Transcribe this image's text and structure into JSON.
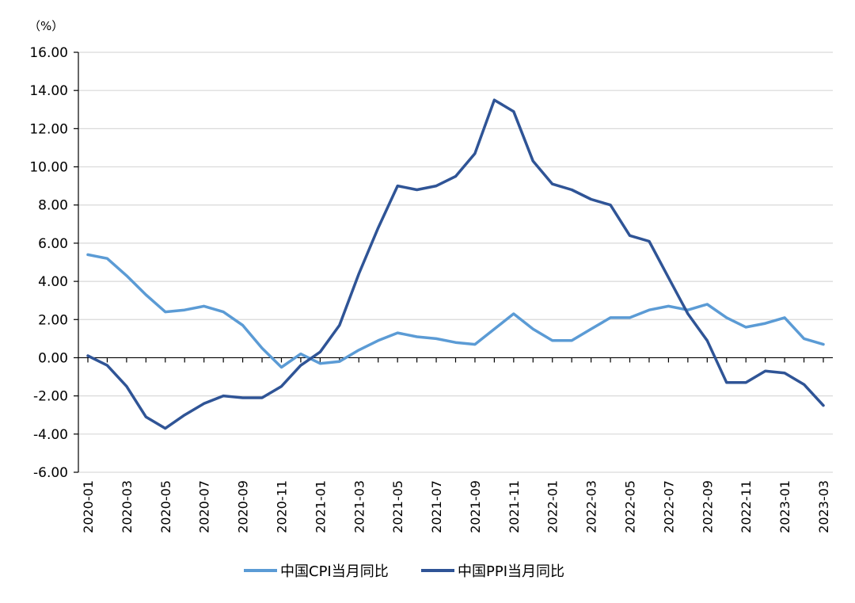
{
  "chart_data": {
    "type": "line",
    "y_unit": "（%）",
    "ylim": [
      -6,
      16
    ],
    "yticks": [
      "16.00",
      "14.00",
      "12.00",
      "10.00",
      "8.00",
      "6.00",
      "4.00",
      "2.00",
      "0.00",
      "-2.00",
      "-4.00",
      "-6.00"
    ],
    "ytick_values": [
      16,
      14,
      12,
      10,
      8,
      6,
      4,
      2,
      0,
      -2,
      -4,
      -6
    ],
    "grid": "horizontal",
    "legend_position": "bottom-center",
    "x": [
      "2020-01",
      "2020-02",
      "2020-03",
      "2020-04",
      "2020-05",
      "2020-06",
      "2020-07",
      "2020-08",
      "2020-09",
      "2020-10",
      "2020-11",
      "2020-12",
      "2021-01",
      "2021-02",
      "2021-03",
      "2021-04",
      "2021-05",
      "2021-06",
      "2021-07",
      "2021-08",
      "2021-09",
      "2021-10",
      "2021-11",
      "2021-12",
      "2022-01",
      "2022-02",
      "2022-03",
      "2022-04",
      "2022-05",
      "2022-06",
      "2022-07",
      "2022-08",
      "2022-09",
      "2022-10",
      "2022-11",
      "2022-12",
      "2023-01",
      "2023-02",
      "2023-03"
    ],
    "xtick_labels": [
      "2020-01",
      "2020-03",
      "2020-05",
      "2020-07",
      "2020-09",
      "2020-11",
      "2021-01",
      "2021-03",
      "2021-05",
      "2021-07",
      "2021-09",
      "2021-11",
      "2022-01",
      "2022-03",
      "2022-05",
      "2022-07",
      "2022-09",
      "2022-11",
      "2023-01",
      "2023-03"
    ],
    "series": [
      {
        "name": "中国CPI当月同比",
        "color": "#5b9bd5",
        "values": [
          5.4,
          5.2,
          4.3,
          3.3,
          2.4,
          2.5,
          2.7,
          2.4,
          1.7,
          0.5,
          -0.5,
          0.2,
          -0.3,
          -0.2,
          0.4,
          0.9,
          1.3,
          1.1,
          1.0,
          0.8,
          0.7,
          1.5,
          2.3,
          1.5,
          0.9,
          0.9,
          1.5,
          2.1,
          2.1,
          2.5,
          2.7,
          2.5,
          2.8,
          2.1,
          1.6,
          1.8,
          2.1,
          1.0,
          0.7
        ]
      },
      {
        "name": "中国PPI当月同比",
        "color": "#2f5496",
        "values": [
          0.1,
          -0.4,
          -1.5,
          -3.1,
          -3.7,
          -3.0,
          -2.4,
          -2.0,
          -2.1,
          -2.1,
          -1.5,
          -0.4,
          0.3,
          1.7,
          4.4,
          6.8,
          9.0,
          8.8,
          9.0,
          9.5,
          10.7,
          13.5,
          12.9,
          10.3,
          9.1,
          8.8,
          8.3,
          8.0,
          6.4,
          6.1,
          4.2,
          2.3,
          0.9,
          -1.3,
          -1.3,
          -0.7,
          -0.8,
          -1.4,
          -2.5
        ]
      }
    ]
  }
}
